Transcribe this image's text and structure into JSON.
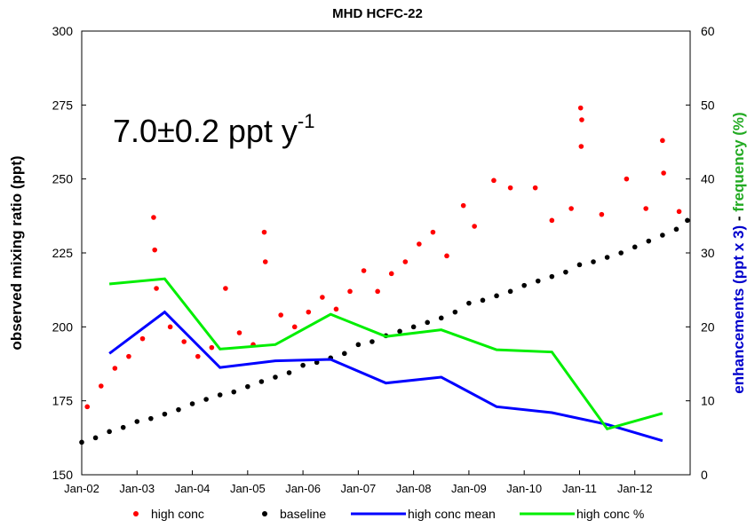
{
  "chart_data": {
    "type": "scatter",
    "title": "MHD HCFC-22",
    "y_label": "observed mixing ratio (ppt)",
    "y2_label_parts": [
      {
        "text": "enhancements (ppt x 3)",
        "color": "#0000cc"
      },
      {
        "text": "-",
        "color": "#000000"
      },
      {
        "text": "frequency (%)",
        "color": "#22aa22"
      }
    ],
    "annotation": {
      "text": "7.0±0.2  ppt y",
      "superscript": "-1"
    },
    "xlim": [
      2002,
      2013
    ],
    "xticks": [
      {
        "value": 2002,
        "label": "Jan-02"
      },
      {
        "value": 2003,
        "label": "Jan-03"
      },
      {
        "value": 2004,
        "label": "Jan-04"
      },
      {
        "value": 2005,
        "label": "Jan-05"
      },
      {
        "value": 2006,
        "label": "Jan-06"
      },
      {
        "value": 2007,
        "label": "Jan-07"
      },
      {
        "value": 2008,
        "label": "Jan-08"
      },
      {
        "value": 2009,
        "label": "Jan-09"
      },
      {
        "value": 2010,
        "label": "Jan-10"
      },
      {
        "value": 2011,
        "label": "Jan-11"
      },
      {
        "value": 2012,
        "label": "Jan-12"
      }
    ],
    "ylim": [
      150,
      300
    ],
    "yticks": [
      150,
      175,
      200,
      225,
      250,
      275,
      300
    ],
    "y2lim": [
      0,
      60
    ],
    "y2ticks": [
      0,
      10,
      20,
      30,
      40,
      50,
      60
    ],
    "grid": false,
    "series": [
      {
        "name": "high conc",
        "type": "scatter",
        "color": "#ff0000",
        "x": [
          2002.1,
          2002.35,
          2002.6,
          2002.85,
          2003.1,
          2003.3,
          2003.32,
          2003.35,
          2003.6,
          2003.85,
          2004.1,
          2004.35,
          2004.6,
          2004.85,
          2005.1,
          2005.3,
          2005.32,
          2005.6,
          2005.85,
          2006.1,
          2006.35,
          2006.6,
          2006.85,
          2007.1,
          2007.35,
          2007.6,
          2007.85,
          2008.1,
          2008.35,
          2008.6,
          2008.9,
          2009.1,
          2009.45,
          2009.75,
          2010.2,
          2010.5,
          2010.85,
          2011.02,
          2011.04,
          2011.03,
          2011.4,
          2011.85,
          2012.2,
          2012.5,
          2012.52,
          2012.8
        ],
        "values": [
          173,
          180,
          186,
          190,
          196,
          237,
          226,
          213,
          200,
          195,
          190,
          193,
          213,
          198,
          194,
          232,
          222,
          204,
          200,
          205,
          210,
          206,
          212,
          219,
          212,
          218,
          222,
          228,
          232,
          224,
          241,
          234,
          249.5,
          247,
          247,
          236,
          240,
          274,
          270,
          261,
          238,
          250,
          240,
          263,
          252,
          239
        ]
      },
      {
        "name": "baseline",
        "type": "scatter",
        "color": "#000000",
        "x": [
          2002,
          2002.25,
          2002.5,
          2002.75,
          2003,
          2003.25,
          2003.5,
          2003.75,
          2004,
          2004.25,
          2004.5,
          2004.75,
          2005,
          2005.25,
          2005.5,
          2005.75,
          2006,
          2006.25,
          2006.5,
          2006.75,
          2007,
          2007.25,
          2007.5,
          2007.75,
          2008,
          2008.25,
          2008.5,
          2008.75,
          2009,
          2009.25,
          2009.5,
          2009.75,
          2010,
          2010.25,
          2010.5,
          2010.75,
          2011,
          2011.25,
          2011.5,
          2011.75,
          2012,
          2012.25,
          2012.5,
          2012.75,
          2012.95
        ],
        "values": [
          161,
          162.5,
          164.6,
          166,
          168,
          169,
          170.5,
          172,
          174,
          175.5,
          177,
          178,
          179.8,
          181.5,
          183,
          184.5,
          187,
          188,
          189.5,
          191,
          194,
          195,
          197,
          198.5,
          200,
          201.5,
          203,
          205,
          208,
          209,
          210.5,
          212,
          214,
          215.5,
          217,
          218.5,
          221,
          222,
          223.5,
          225,
          227,
          229,
          231,
          233,
          236
        ]
      },
      {
        "name": "high conc mean",
        "type": "line",
        "axis": "y2",
        "color": "#0000ff",
        "x": [
          2002.5,
          2003.5,
          2004.5,
          2005.5,
          2006.5,
          2007.5,
          2008.5,
          2009.5,
          2010.5,
          2011.5,
          2012.5
        ],
        "values": [
          16.4,
          22.0,
          14.5,
          15.4,
          15.6,
          12.4,
          13.2,
          9.2,
          8.4,
          6.8,
          4.6
        ]
      },
      {
        "name": "high conc %",
        "type": "line",
        "axis": "y2",
        "color": "#00ee00",
        "x": [
          2002.5,
          2003.5,
          2004.5,
          2005.5,
          2006.5,
          2007.5,
          2008.5,
          2009.5,
          2010.5,
          2011.5,
          2012.5
        ],
        "values": [
          25.8,
          26.5,
          17.0,
          17.6,
          21.7,
          18.7,
          19.6,
          16.9,
          16.6,
          6.2,
          8.3
        ]
      }
    ]
  }
}
